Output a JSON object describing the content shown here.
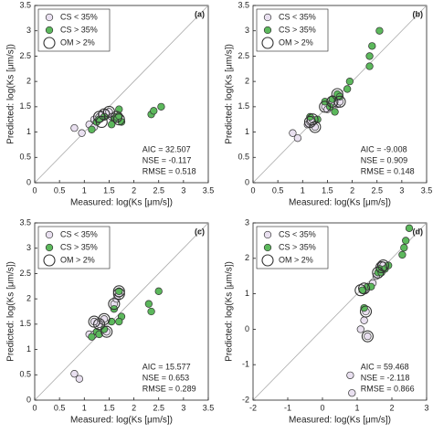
{
  "chart_data": [
    {
      "type": "scatter",
      "label": "(a)",
      "xlabel": "Measured: log(Ks [μm/s])",
      "ylabel": "Predicted: log(Ks [μm/s])",
      "xlim": [
        0,
        3.5
      ],
      "ylim": [
        0,
        3.5
      ],
      "xticks": [
        0,
        0.5,
        1,
        1.5,
        2,
        2.5,
        3,
        3.5
      ],
      "yticks": [
        0,
        0.5,
        1,
        1.5,
        2,
        2.5,
        3,
        3.5
      ],
      "legend": "upper left",
      "annotations": [
        "AIC = 32.507",
        "NSE = -0.117",
        "RMSE = 0.518"
      ],
      "series": [
        {
          "name": "CS < 35%",
          "color": "#e9e0f0",
          "x": [
            0.8,
            0.95,
            1.1,
            1.2,
            1.3,
            1.35,
            1.45,
            1.5,
            1.55,
            1.2,
            1.25
          ],
          "values": [
            1.08,
            0.98,
            1.15,
            1.25,
            1.3,
            1.35,
            1.38,
            1.4,
            1.3,
            1.1,
            1.2
          ]
        },
        {
          "name": "CS > 35%",
          "color": "#5cb85c",
          "x": [
            1.15,
            1.25,
            1.4,
            1.6,
            1.65,
            1.7,
            1.75,
            2.35,
            2.4,
            2.55,
            1.55,
            1.3,
            1.7
          ],
          "values": [
            1.05,
            1.2,
            1.3,
            1.25,
            1.3,
            1.32,
            1.2,
            1.35,
            1.42,
            1.5,
            1.15,
            1.25,
            1.45
          ]
        },
        {
          "name": "OM > 2%",
          "color": "#333333",
          "x": [
            1.3,
            1.4,
            1.5,
            1.65,
            1.7,
            1.35
          ],
          "values": [
            1.3,
            1.35,
            1.4,
            1.3,
            1.25,
            1.2
          ]
        }
      ]
    },
    {
      "type": "scatter",
      "label": "(b)",
      "xlabel": "Measured: log(Ks [μm/s])",
      "ylabel": "Predicted: log(Ks [μm/s])",
      "xlim": [
        0,
        3.5
      ],
      "ylim": [
        0,
        3.5
      ],
      "xticks": [
        0,
        0.5,
        1,
        1.5,
        2,
        2.5,
        3,
        3.5
      ],
      "yticks": [
        0,
        0.5,
        1,
        1.5,
        2,
        2.5,
        3,
        3.5
      ],
      "legend": "upper left",
      "annotations": [
        "AIC = -9.008",
        "NSE = 0.909",
        "RMSE = 0.148"
      ],
      "series": [
        {
          "name": "CS < 35%",
          "color": "#e9e0f0",
          "x": [
            0.8,
            0.9,
            1.1,
            1.15,
            1.2,
            1.25,
            1.45,
            1.5,
            1.6,
            1.7,
            1.75
          ],
          "values": [
            0.98,
            0.88,
            1.15,
            1.2,
            1.25,
            1.1,
            1.5,
            1.45,
            1.6,
            1.55,
            1.6
          ]
        },
        {
          "name": "CS > 35%",
          "color": "#5cb85c",
          "x": [
            1.15,
            1.3,
            1.45,
            1.6,
            1.7,
            1.75,
            1.9,
            1.95,
            2.35,
            2.35,
            2.4,
            2.55,
            1.65,
            1.55
          ],
          "values": [
            1.3,
            1.25,
            1.6,
            1.65,
            1.75,
            1.7,
            1.85,
            2.0,
            2.3,
            2.5,
            2.7,
            3.0,
            1.4,
            1.5
          ]
        },
        {
          "name": "OM > 2%",
          "color": "#333333",
          "x": [
            1.15,
            1.2,
            1.25,
            1.45,
            1.6,
            1.7,
            1.75
          ],
          "values": [
            1.2,
            1.25,
            1.1,
            1.5,
            1.6,
            1.75,
            1.6
          ]
        }
      ]
    },
    {
      "type": "scatter",
      "label": "(c)",
      "xlabel": "Measured: log(Ks [μm/s])",
      "ylabel": "Predicted: log(Ks [μm/s])",
      "xlim": [
        0,
        3.5
      ],
      "ylim": [
        0,
        3.5
      ],
      "xticks": [
        0,
        0.5,
        1,
        1.5,
        2,
        2.5,
        3,
        3.5
      ],
      "yticks": [
        0,
        0.5,
        1,
        1.5,
        2,
        2.5,
        3,
        3.5
      ],
      "legend": "upper left",
      "annotations": [
        "AIC = 15.577",
        "NSE = 0.653",
        "RMSE = 0.289"
      ],
      "series": [
        {
          "name": "CS < 35%",
          "color": "#e9e0f0",
          "x": [
            0.8,
            0.9,
            1.1,
            1.2,
            1.3,
            1.4,
            1.45,
            1.6,
            1.65,
            1.7,
            1.2
          ],
          "values": [
            0.52,
            0.42,
            1.3,
            1.3,
            1.5,
            1.6,
            1.35,
            1.9,
            2.0,
            2.1,
            1.55
          ]
        },
        {
          "name": "CS > 35%",
          "color": "#5cb85c",
          "x": [
            1.15,
            1.25,
            1.3,
            1.4,
            1.6,
            1.7,
            1.75,
            2.3,
            2.35,
            2.5,
            1.55,
            1.7
          ],
          "values": [
            1.25,
            1.35,
            1.3,
            1.4,
            1.8,
            2.15,
            1.65,
            1.9,
            1.75,
            2.15,
            1.55,
            1.55
          ]
        },
        {
          "name": "OM > 2%",
          "color": "#333333",
          "x": [
            1.2,
            1.3,
            1.4,
            1.6,
            1.7,
            1.7,
            1.45
          ],
          "values": [
            1.55,
            1.5,
            1.6,
            1.9,
            2.1,
            2.15,
            1.35
          ]
        }
      ]
    },
    {
      "type": "scatter",
      "label": "(d)",
      "xlabel": "Measured: log(Ks [μm/s])",
      "ylabel": "Predicted: log(Ks [μm/s])",
      "xlim": [
        -2,
        3
      ],
      "ylim": [
        -2,
        3
      ],
      "xticks": [
        -2,
        -1,
        0,
        1,
        2,
        3
      ],
      "yticks": [
        -2,
        -1,
        0,
        1,
        2,
        3
      ],
      "legend": "upper left",
      "annotations": [
        "AIC = 59.468",
        "NSE = -2.118",
        "RMSE = 0.866"
      ],
      "series": [
        {
          "name": "CS < 35%",
          "color": "#e9e0f0",
          "x": [
            0.8,
            0.85,
            1.1,
            1.2,
            1.25,
            1.3,
            1.45,
            1.55,
            1.7,
            1.75,
            1.2
          ],
          "values": [
            -1.3,
            -1.8,
            0.0,
            0.25,
            0.5,
            -0.2,
            1.3,
            1.5,
            1.8,
            1.8,
            1.1
          ]
        },
        {
          "name": "CS > 35%",
          "color": "#5cb85c",
          "x": [
            1.15,
            1.3,
            1.4,
            1.6,
            1.65,
            1.7,
            1.8,
            1.9,
            2.3,
            2.35,
            2.4,
            2.5,
            1.2
          ],
          "values": [
            1.1,
            1.2,
            1.2,
            1.6,
            1.7,
            1.6,
            1.7,
            1.8,
            2.1,
            2.3,
            2.5,
            2.85,
            0.6
          ]
        },
        {
          "name": "OM > 2%",
          "color": "#333333",
          "x": [
            1.1,
            1.2,
            1.25,
            1.3,
            1.7,
            1.75,
            1.6
          ],
          "values": [
            1.1,
            1.15,
            0.5,
            -0.2,
            1.75,
            1.8,
            1.6
          ]
        }
      ]
    }
  ]
}
